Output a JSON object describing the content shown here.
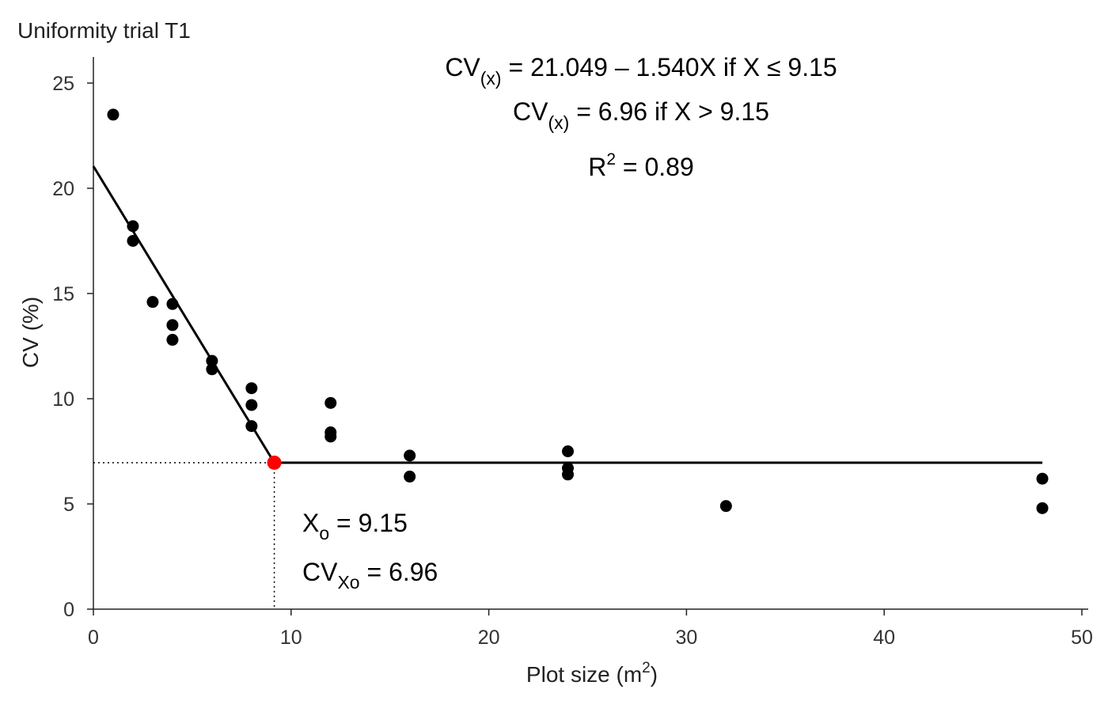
{
  "chart_data": {
    "type": "scatter",
    "title": "Uniformity trial T1",
    "xlabel_main": "Plot size (m",
    "xlabel_sup": "2",
    "xlabel_end": ")",
    "ylabel": "CV (%)",
    "xlim": [
      0,
      50
    ],
    "ylim": [
      0,
      25
    ],
    "xticks": [
      0,
      10,
      20,
      30,
      40,
      50
    ],
    "yticks": [
      0,
      5,
      10,
      15,
      20,
      25
    ],
    "grid": false,
    "points": [
      {
        "x": 1,
        "y": 23.5
      },
      {
        "x": 2,
        "y": 18.2
      },
      {
        "x": 2,
        "y": 17.5
      },
      {
        "x": 3,
        "y": 14.6
      },
      {
        "x": 4,
        "y": 14.5
      },
      {
        "x": 4,
        "y": 13.5
      },
      {
        "x": 4,
        "y": 12.8
      },
      {
        "x": 6,
        "y": 11.8
      },
      {
        "x": 6,
        "y": 11.4
      },
      {
        "x": 8,
        "y": 10.5
      },
      {
        "x": 8,
        "y": 9.7
      },
      {
        "x": 8,
        "y": 8.7
      },
      {
        "x": 12,
        "y": 9.8
      },
      {
        "x": 12,
        "y": 8.4
      },
      {
        "x": 12,
        "y": 8.2
      },
      {
        "x": 16,
        "y": 7.3
      },
      {
        "x": 16,
        "y": 6.3
      },
      {
        "x": 24,
        "y": 7.5
      },
      {
        "x": 24,
        "y": 6.7
      },
      {
        "x": 24,
        "y": 6.4
      },
      {
        "x": 32,
        "y": 4.9
      },
      {
        "x": 48,
        "y": 6.2
      },
      {
        "x": 48,
        "y": 4.8
      }
    ],
    "model": {
      "intercept": 21.049,
      "slope": -1.54,
      "breakpoint_x": 9.15,
      "plateau_y": 6.96,
      "x_end": 48
    },
    "breakpoint_color": "#ff0000",
    "point_color": "#000000",
    "equations": {
      "eq1": {
        "lhs": "CV",
        "sub": "(x)",
        "rhs": " = 21.049 – 1.540X  if  X ≤ 9.15"
      },
      "eq2": {
        "lhs": "CV",
        "sub": "(x)",
        "rhs": " = 6.96  if  X > 9.15"
      },
      "r2": {
        "lhs": "R",
        "sup": "2",
        "rhs": " = 0.89"
      }
    },
    "annotations": {
      "xo": {
        "lhs": "X",
        "sub": "o",
        "rhs": " = 9.15"
      },
      "cvxo": {
        "lhs": "CV",
        "sub": "Xo",
        "rhs": " = 6.96"
      }
    }
  }
}
